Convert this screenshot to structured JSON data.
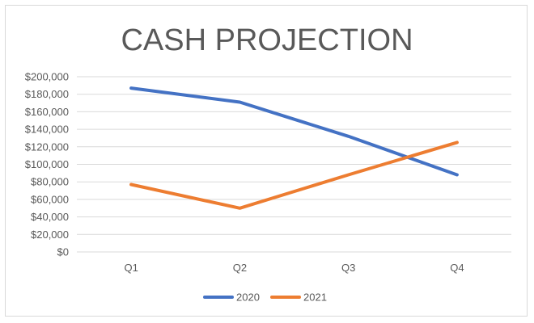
{
  "chart_data": {
    "type": "line",
    "title": "CASH PROJECTION",
    "categories": [
      "Q1",
      "Q2",
      "Q3",
      "Q4"
    ],
    "y_ticks": [
      "$0",
      "$20,000",
      "$40,000",
      "$60,000",
      "$80,000",
      "$100,000",
      "$120,000",
      "$140,000",
      "$160,000",
      "$180,000",
      "$200,000"
    ],
    "ylim": [
      0,
      200000
    ],
    "grid": true,
    "legend_position": "bottom",
    "series": [
      {
        "name": "2020",
        "color": "#4472c4",
        "values": [
          187000,
          171000,
          132000,
          88000
        ]
      },
      {
        "name": "2021",
        "color": "#ed7d31",
        "values": [
          77000,
          50000,
          88000,
          125000
        ]
      }
    ]
  }
}
